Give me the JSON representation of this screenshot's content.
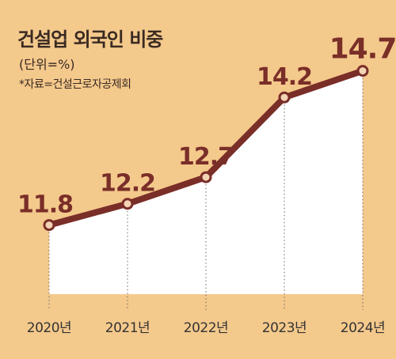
{
  "chart_data": {
    "type": "area",
    "title": "건설업 외국인 비중",
    "unit_label": "(단위=%)",
    "source_note": "*자료=건설근로자공제회",
    "categories": [
      "2020년",
      "2021년",
      "2022년",
      "2023년",
      "2024년"
    ],
    "values": [
      11.8,
      12.2,
      12.7,
      14.2,
      14.7
    ],
    "value_labels": [
      "11.8",
      "12.2",
      "12.7",
      "14.2",
      "14.7"
    ],
    "ylim": [
      10.5,
      15.2
    ],
    "grid": false,
    "legend": "none"
  },
  "colors": {
    "background": "#f4c98c",
    "line": "#7a2e28",
    "area": "#ffffff",
    "marker_fill": "#f3d4b5",
    "label_text": "#7a2e28",
    "axis_text": "#333333"
  }
}
